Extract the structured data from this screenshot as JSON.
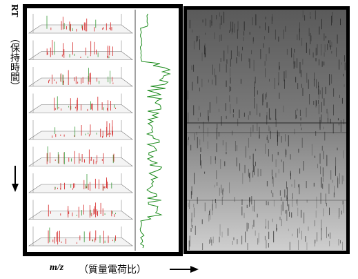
{
  "axis_labels": {
    "rt": "RT",
    "rt_note": "（保持時間）",
    "mz": "m/z",
    "mz_note": "（質量電荷比）"
  }
}
